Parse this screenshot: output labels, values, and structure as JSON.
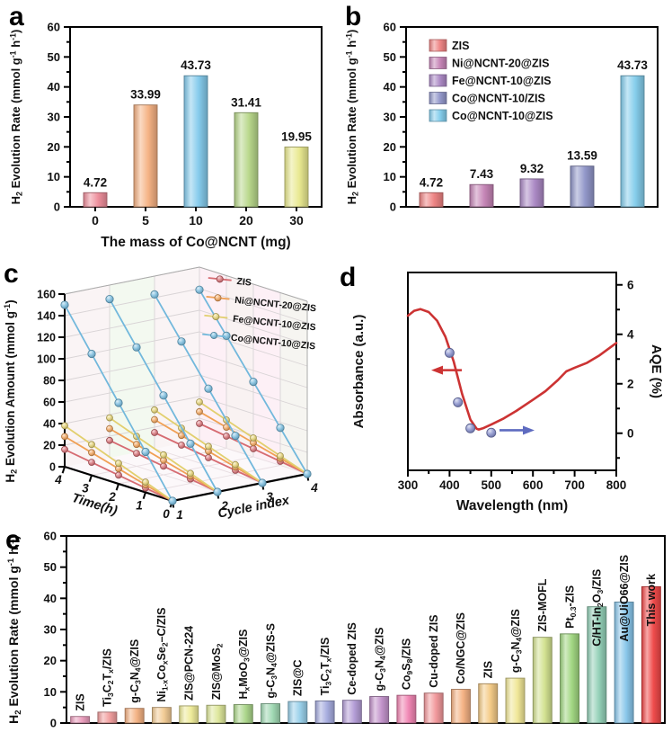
{
  "figure": {
    "background": "#ffffff"
  },
  "panel_labels": {
    "a": "a",
    "b": "b",
    "c": "c",
    "d": "d",
    "e": "e"
  },
  "chart_data": [
    {
      "panel": "a",
      "type": "bar",
      "xlabel": "The mass of Co@NCNT (mg)",
      "ylabel": "H_2_ Evolution Rate (mmol g^-1^ h^-1^)",
      "ylim": [
        0,
        60
      ],
      "ytick_step": 10,
      "grid": false,
      "categories": [
        "0",
        "5",
        "10",
        "20",
        "30"
      ],
      "values": [
        4.72,
        33.99,
        43.73,
        31.41,
        19.95
      ],
      "value_labels": [
        "4.72",
        "33.99",
        "43.73",
        "31.41",
        "19.95"
      ],
      "colors": [
        "#ee8e9b",
        "#f5b183",
        "#84caec",
        "#b8d78a",
        "#e9e98f"
      ]
    },
    {
      "panel": "b",
      "type": "bar",
      "ylabel": "H_2_ Evolution Rate (mmol g^-1^ h^-1^)",
      "ylim": [
        0,
        60
      ],
      "ytick_step": 10,
      "grid": false,
      "legend_position": "upper-left",
      "legend": [
        "ZIS",
        "Ni@NCNT-20@ZIS",
        "Fe@NCNT-10@ZIS",
        "Co@NCNT-10/ZIS",
        "Co@NCNT-10@ZIS"
      ],
      "values": [
        4.72,
        7.43,
        9.32,
        13.59,
        43.73
      ],
      "value_labels": [
        "4.72",
        "7.43",
        "9.32",
        "13.59",
        "43.73"
      ],
      "colors": [
        "#ee8383",
        "#c584b6",
        "#aa88c4",
        "#9196c9",
        "#84cdec"
      ]
    },
    {
      "panel": "c",
      "type": "line",
      "subtype": "3d-lines",
      "ylabel": "H_2_ Evolution Amount (mmol g^-1^)",
      "xlabel": "Time(h)",
      "zlabel": "Cycle index",
      "ylim": [
        0,
        160
      ],
      "ytick_step": 20,
      "time_ticks": [
        4,
        3,
        2,
        1,
        0
      ],
      "cycle_ticks": [
        1,
        2,
        3,
        4
      ],
      "legend_position": "upper-right",
      "series": [
        {
          "name": "ZIS",
          "color": "#d66b72",
          "cycle_totals": [
            16,
            16,
            15,
            15
          ]
        },
        {
          "name": "Ni@NCNT-20@ZIS",
          "color": "#f0a055",
          "cycle_totals": [
            28,
            27,
            27,
            26
          ]
        },
        {
          "name": "Fe@NCNT-10@ZIS",
          "color": "#e2cf6e",
          "cycle_totals": [
            38,
            37,
            36,
            35
          ]
        },
        {
          "name": "Co@NCNT-10@ZIS",
          "color": "#72b8dc",
          "cycle_totals": [
            150,
            147,
            143,
            139
          ]
        }
      ]
    },
    {
      "panel": "d",
      "type": "line",
      "xlabel": "Wavelength (nm)",
      "ylabel_left": "Absorbance (a.u.)",
      "ylabel_right": "AQE (%)",
      "xlim": [
        300,
        800
      ],
      "xticks": [
        300,
        400,
        500,
        600,
        700,
        800
      ],
      "right_ylim": [
        -1.5,
        6.5
      ],
      "right_yticks": [
        0,
        2,
        4,
        6
      ],
      "curve_color": "#cc3333",
      "point_color": "#8089ca",
      "right_arrow_color": "#5e6bc0",
      "absorbance_curve": {
        "x": [
          300,
          315,
          330,
          350,
          370,
          390,
          410,
          430,
          450,
          465,
          470,
          480,
          500,
          530,
          560,
          600,
          630,
          660,
          680,
          700,
          730,
          760,
          800
        ],
        "y": [
          4.75,
          4.95,
          5.02,
          4.9,
          4.55,
          3.9,
          2.9,
          1.6,
          0.55,
          0.18,
          0.15,
          0.2,
          0.35,
          0.6,
          0.9,
          1.35,
          1.7,
          2.15,
          2.5,
          2.65,
          2.85,
          3.15,
          3.65
        ]
      },
      "aqe_points": {
        "x": [
          400,
          420,
          450,
          500
        ],
        "y": [
          3.25,
          1.25,
          0.2,
          0.02
        ]
      }
    },
    {
      "panel": "e",
      "type": "bar",
      "ylabel": "H_2_ Evolution Rate (mmol g^-1^ h^-1^)",
      "ylim": [
        0,
        60
      ],
      "ytick_step": 10,
      "grid": false,
      "categories": [
        "ZIS",
        "Ti_3_C_2_T_x_/ZIS",
        "g-C_3_N_4_@ZIS",
        "Ni_1-x_Co_x_Se_2_–C/ZIS",
        "ZIS@PCN-224",
        "ZIS@MoS_2_",
        "H_x_MoO_3_@ZIS",
        "g-C_3_N_4_@ZIS-S",
        "ZIS@C",
        "Ti_3_C_2_T_x_/ZIS",
        "Ce-doped ZIS",
        "g-C_3_N_4_@ZIS",
        "Co_9_S_8_/ZIS",
        "Cu-doped ZIS",
        "Co/NGC@ZIS",
        "ZIS",
        "g-C_3_N_4_@ZIS",
        "ZIS-MOFL",
        "Pt_0.3_-ZIS",
        "C/HT-In_2_O_3_/ZIS",
        "Au@UiO66@ZIS",
        "This work"
      ],
      "values": [
        2.1,
        3.5,
        4.7,
        5.0,
        5.5,
        5.7,
        5.9,
        6.2,
        6.9,
        7.1,
        7.3,
        8.5,
        8.9,
        9.6,
        10.8,
        12.6,
        14.4,
        27.5,
        28.6,
        37.3,
        38.8,
        43.73
      ],
      "colors": [
        "#eb9dbd",
        "#f29e9e",
        "#f4b183",
        "#f2cb94",
        "#eeeb98",
        "#dde79a",
        "#abd68b",
        "#9fd8b2",
        "#98d0ea",
        "#a5abde",
        "#b39cd6",
        "#c292ca",
        "#f085b2",
        "#f2989b",
        "#f5b183",
        "#f4ca86",
        "#f0e696",
        "#d2e190",
        "#a0d680",
        "#92cfb6",
        "#88c6ea",
        "#f04848"
      ]
    }
  ]
}
